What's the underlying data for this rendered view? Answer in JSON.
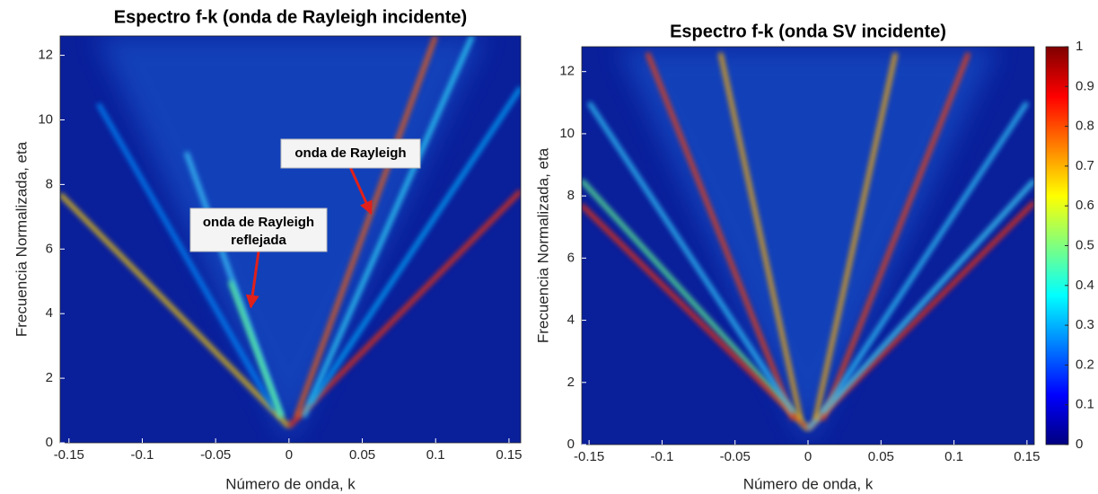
{
  "chart_data": [
    {
      "type": "heatmap",
      "title": "Espectro f-k (onda de Rayleigh incidente)",
      "x_label": "Número de onda, k",
      "y_label": "Frecuencia Normalizada, eta",
      "xlim": [
        -0.156,
        0.158
      ],
      "ylim": [
        0,
        12.6
      ],
      "xticks": [
        -0.15,
        -0.1,
        -0.05,
        0,
        0.05,
        0.1,
        0.15
      ],
      "yticks": [
        0,
        2,
        4,
        6,
        8,
        10,
        12
      ],
      "ridges": [
        {
          "x": [
            0,
            -0.156
          ],
          "y": [
            0.5,
            7.7
          ],
          "color": "#ffd000"
        },
        {
          "x": [
            0,
            0.158
          ],
          "y": [
            0.5,
            7.8
          ],
          "color": "#ff3000"
        },
        {
          "x": [
            0.005,
            0.1
          ],
          "y": [
            0.8,
            12.6
          ],
          "color": "#ff6000"
        },
        {
          "x": [
            0.01,
            0.125
          ],
          "y": [
            0.8,
            12.6
          ],
          "color": "#30e0ff"
        },
        {
          "x": [
            0.015,
            0.158
          ],
          "y": [
            1.2,
            11
          ],
          "color": "#00b0ff"
        },
        {
          "x": [
            -0.005,
            -0.07
          ],
          "y": [
            0.8,
            9
          ],
          "color": "#40d0ff"
        },
        {
          "x": [
            -0.01,
            -0.13
          ],
          "y": [
            1,
            10.5
          ],
          "color": "#0090ff"
        },
        {
          "x": [
            -0.005,
            -0.04
          ],
          "y": [
            0.8,
            5
          ],
          "color": "#60ff90"
        }
      ],
      "annotations": [
        {
          "lines": [
            "onda de Rayleigh"
          ],
          "point": [
            0.056,
            7.1
          ]
        },
        {
          "lines": [
            "onda de Rayleigh",
            "reflejada"
          ],
          "point": [
            -0.026,
            4.2
          ]
        }
      ]
    },
    {
      "type": "heatmap",
      "title": "Espectro f-k (onda SV incidente)",
      "x_label": "Número de onda, k",
      "y_label": "Frecuencia Normalizada, eta",
      "xlim": [
        -0.155,
        0.155
      ],
      "ylim": [
        0,
        12.8
      ],
      "xticks": [
        -0.15,
        -0.1,
        -0.05,
        0,
        0.05,
        0.1,
        0.15
      ],
      "yticks": [
        0,
        2,
        4,
        6,
        8,
        10,
        12
      ],
      "ridges": [
        {
          "x": [
            0,
            -0.155
          ],
          "y": [
            0.5,
            8.5
          ],
          "color": "#60ff90"
        },
        {
          "x": [
            0,
            -0.155
          ],
          "y": [
            0.5,
            7.7
          ],
          "color": "#ff3000"
        },
        {
          "x": [
            0,
            0.155
          ],
          "y": [
            0.5,
            7.8
          ],
          "color": "#ff3000"
        },
        {
          "x": [
            0,
            0.155
          ],
          "y": [
            0.5,
            8.5
          ],
          "color": "#40e0ff"
        },
        {
          "x": [
            -0.005,
            -0.06
          ],
          "y": [
            0.8,
            12.6
          ],
          "color": "#ffb000"
        },
        {
          "x": [
            -0.01,
            -0.11
          ],
          "y": [
            0.8,
            12.6
          ],
          "color": "#ff4000"
        },
        {
          "x": [
            0.005,
            0.06
          ],
          "y": [
            0.8,
            12.6
          ],
          "color": "#ffb000"
        },
        {
          "x": [
            0.01,
            0.11
          ],
          "y": [
            0.8,
            12.6
          ],
          "color": "#ff4000"
        },
        {
          "x": [
            -0.01,
            -0.15
          ],
          "y": [
            1,
            11
          ],
          "color": "#30d0ff"
        },
        {
          "x": [
            0.01,
            0.15
          ],
          "y": [
            1,
            11
          ],
          "color": "#30d0ff"
        }
      ],
      "colorbar": {
        "colormap": [
          "#00007f",
          "#0000ff",
          "#007fff",
          "#00ffff",
          "#7fff7f",
          "#ffff00",
          "#ff7f00",
          "#ff0000",
          "#7f0000"
        ],
        "lim": [
          0,
          1
        ],
        "ticks": [
          0,
          0.1,
          0.2,
          0.3,
          0.4,
          0.5,
          0.6,
          0.7,
          0.8,
          0.9,
          1
        ]
      }
    }
  ]
}
